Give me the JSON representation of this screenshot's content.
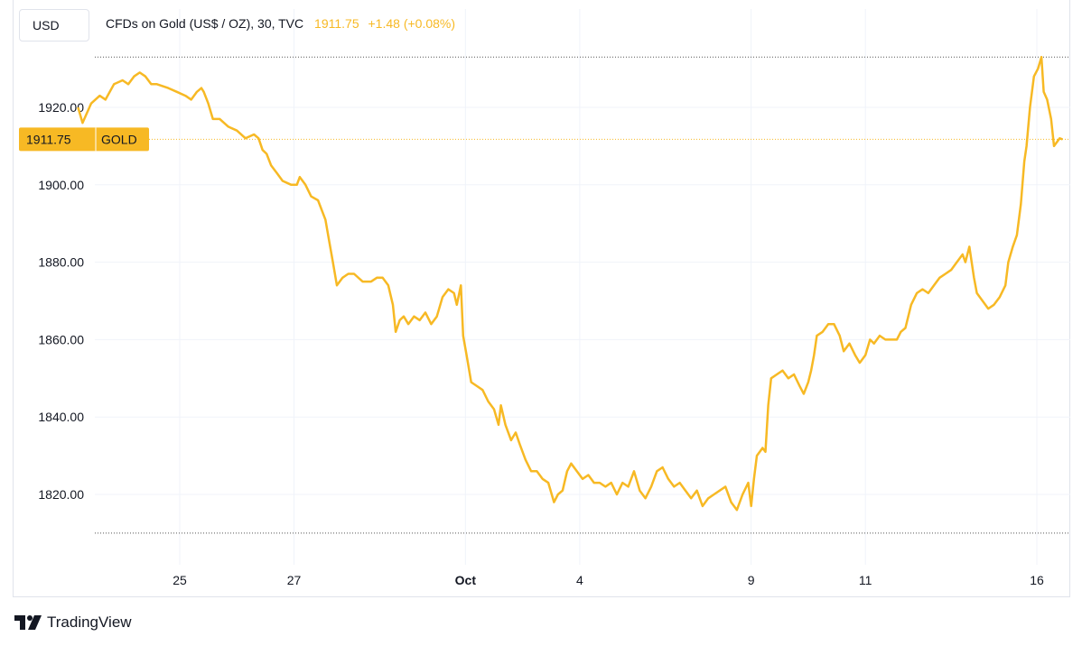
{
  "header": {
    "currency_button": "USD",
    "symbol_name": "CFDs on Gold (US$ / OZ), 30, TVC",
    "last_price": "1911.75",
    "change": "+1.48 (+0.08%)"
  },
  "price_badge": {
    "price": "1911.75",
    "label": "GOLD"
  },
  "footer": {
    "brand": "TradingView"
  },
  "colors": {
    "line": "#f7b924",
    "badge": "#f7b924",
    "grid": "#f0f3fa",
    "text": "#131722"
  },
  "chart_data": {
    "type": "line",
    "title": "CFDs on Gold (US$ / OZ), 30, TVC",
    "ylim": [
      1803,
      1943
    ],
    "y_ticks": [
      1820,
      1840,
      1860,
      1880,
      1900,
      1920
    ],
    "y_tick_labels": [
      "1820.00",
      "1840.00",
      "1860.00",
      "1880.00",
      "1900.00",
      "1920.00"
    ],
    "x_range": [
      23.2,
      40.3
    ],
    "x_ticks": [
      25,
      27,
      30,
      32,
      35,
      37,
      40
    ],
    "x_tick_labels": [
      "25",
      "27",
      "Oct",
      "4",
      "9",
      "11",
      "16"
    ],
    "high": 1933,
    "low": 1810,
    "last": 1911.75,
    "grid": true,
    "legend": "top-left",
    "series": [
      {
        "color": "#f7b924",
        "points": [
          [
            23.22,
            1920
          ],
          [
            23.3,
            1916
          ],
          [
            23.45,
            1921
          ],
          [
            23.6,
            1923
          ],
          [
            23.7,
            1922
          ],
          [
            23.85,
            1926
          ],
          [
            24.0,
            1927
          ],
          [
            24.1,
            1926
          ],
          [
            24.2,
            1928
          ],
          [
            24.3,
            1929
          ],
          [
            24.4,
            1928
          ],
          [
            24.5,
            1926
          ],
          [
            24.6,
            1926
          ],
          [
            24.8,
            1925
          ],
          [
            24.95,
            1924
          ],
          [
            25.1,
            1923
          ],
          [
            25.2,
            1922
          ],
          [
            25.3,
            1924
          ],
          [
            25.38,
            1925
          ],
          [
            25.42,
            1924
          ],
          [
            25.5,
            1921
          ],
          [
            25.58,
            1917
          ],
          [
            25.7,
            1917
          ],
          [
            25.85,
            1915
          ],
          [
            26.0,
            1914
          ],
          [
            26.15,
            1912
          ],
          [
            26.3,
            1913
          ],
          [
            26.38,
            1912
          ],
          [
            26.45,
            1909
          ],
          [
            26.52,
            1908
          ],
          [
            26.6,
            1905
          ],
          [
            26.7,
            1903
          ],
          [
            26.8,
            1901
          ],
          [
            26.95,
            1900
          ],
          [
            27.05,
            1900
          ],
          [
            27.1,
            1902
          ],
          [
            27.2,
            1900
          ],
          [
            27.3,
            1897
          ],
          [
            27.42,
            1896
          ],
          [
            27.55,
            1891
          ],
          [
            27.62,
            1885
          ],
          [
            27.68,
            1880
          ],
          [
            27.75,
            1874
          ],
          [
            27.85,
            1876
          ],
          [
            27.95,
            1877
          ],
          [
            28.05,
            1877
          ],
          [
            28.2,
            1875
          ],
          [
            28.35,
            1875
          ],
          [
            28.45,
            1876
          ],
          [
            28.55,
            1876
          ],
          [
            28.65,
            1874
          ],
          [
            28.73,
            1869
          ],
          [
            28.78,
            1862
          ],
          [
            28.85,
            1865
          ],
          [
            28.92,
            1866
          ],
          [
            29.0,
            1864
          ],
          [
            29.1,
            1866
          ],
          [
            29.2,
            1865
          ],
          [
            29.3,
            1867
          ],
          [
            29.4,
            1864
          ],
          [
            29.5,
            1866
          ],
          [
            29.6,
            1871
          ],
          [
            29.7,
            1873
          ],
          [
            29.8,
            1872
          ],
          [
            29.85,
            1869
          ],
          [
            29.92,
            1874
          ],
          [
            29.96,
            1861
          ],
          [
            30.02,
            1856
          ],
          [
            30.1,
            1849
          ],
          [
            30.2,
            1848
          ],
          [
            30.3,
            1847
          ],
          [
            30.4,
            1844
          ],
          [
            30.5,
            1842
          ],
          [
            30.58,
            1838
          ],
          [
            30.62,
            1843
          ],
          [
            30.7,
            1838
          ],
          [
            30.8,
            1834
          ],
          [
            30.88,
            1836
          ],
          [
            30.95,
            1833
          ],
          [
            31.05,
            1829
          ],
          [
            31.15,
            1826
          ],
          [
            31.25,
            1826
          ],
          [
            31.35,
            1824
          ],
          [
            31.45,
            1823
          ],
          [
            31.55,
            1818
          ],
          [
            31.62,
            1820
          ],
          [
            31.7,
            1821
          ],
          [
            31.78,
            1826
          ],
          [
            31.85,
            1828
          ],
          [
            31.95,
            1826
          ],
          [
            32.05,
            1824
          ],
          [
            32.15,
            1825
          ],
          [
            32.25,
            1823
          ],
          [
            32.35,
            1823
          ],
          [
            32.45,
            1822
          ],
          [
            32.55,
            1823
          ],
          [
            32.65,
            1820
          ],
          [
            32.75,
            1823
          ],
          [
            32.85,
            1822
          ],
          [
            32.95,
            1826
          ],
          [
            33.05,
            1821
          ],
          [
            33.15,
            1819
          ],
          [
            33.25,
            1822
          ],
          [
            33.35,
            1826
          ],
          [
            33.45,
            1827
          ],
          [
            33.55,
            1824
          ],
          [
            33.65,
            1822
          ],
          [
            33.75,
            1823
          ],
          [
            33.85,
            1821
          ],
          [
            33.95,
            1819
          ],
          [
            34.05,
            1821
          ],
          [
            34.15,
            1817
          ],
          [
            34.25,
            1819
          ],
          [
            34.35,
            1820
          ],
          [
            34.45,
            1821
          ],
          [
            34.55,
            1822
          ],
          [
            34.65,
            1818
          ],
          [
            34.75,
            1816
          ],
          [
            34.85,
            1820
          ],
          [
            34.95,
            1823
          ],
          [
            35.0,
            1817
          ],
          [
            35.05,
            1824
          ],
          [
            35.1,
            1830
          ],
          [
            35.2,
            1832
          ],
          [
            35.25,
            1831
          ],
          [
            35.3,
            1843
          ],
          [
            35.35,
            1850
          ],
          [
            35.45,
            1851
          ],
          [
            35.55,
            1852
          ],
          [
            35.65,
            1850
          ],
          [
            35.75,
            1851
          ],
          [
            35.85,
            1848
          ],
          [
            35.92,
            1846
          ],
          [
            36.0,
            1849
          ],
          [
            36.05,
            1852
          ],
          [
            36.1,
            1856
          ],
          [
            36.15,
            1861
          ],
          [
            36.25,
            1862
          ],
          [
            36.35,
            1864
          ],
          [
            36.45,
            1864
          ],
          [
            36.55,
            1861
          ],
          [
            36.62,
            1857
          ],
          [
            36.72,
            1859
          ],
          [
            36.82,
            1856
          ],
          [
            36.9,
            1854
          ],
          [
            37.0,
            1856
          ],
          [
            37.08,
            1860
          ],
          [
            37.15,
            1859
          ],
          [
            37.25,
            1861
          ],
          [
            37.35,
            1860
          ],
          [
            37.45,
            1860
          ],
          [
            37.55,
            1860
          ],
          [
            37.62,
            1862
          ],
          [
            37.7,
            1863
          ],
          [
            37.8,
            1869
          ],
          [
            37.9,
            1872
          ],
          [
            38.0,
            1873
          ],
          [
            38.1,
            1872
          ],
          [
            38.2,
            1874
          ],
          [
            38.3,
            1876
          ],
          [
            38.4,
            1877
          ],
          [
            38.5,
            1878
          ],
          [
            38.6,
            1880
          ],
          [
            38.7,
            1882
          ],
          [
            38.75,
            1880
          ],
          [
            38.82,
            1884
          ],
          [
            38.9,
            1876
          ],
          [
            38.95,
            1872
          ],
          [
            39.05,
            1870
          ],
          [
            39.15,
            1868
          ],
          [
            39.25,
            1869
          ],
          [
            39.35,
            1871
          ],
          [
            39.45,
            1874
          ],
          [
            39.5,
            1880
          ],
          [
            39.58,
            1884
          ],
          [
            39.65,
            1887
          ],
          [
            39.72,
            1895
          ],
          [
            39.78,
            1906
          ],
          [
            39.82,
            1910
          ],
          [
            39.88,
            1920
          ],
          [
            39.95,
            1928
          ],
          [
            40.02,
            1930
          ],
          [
            40.08,
            1933
          ],
          [
            40.12,
            1924
          ],
          [
            40.18,
            1922
          ],
          [
            40.25,
            1917
          ],
          [
            40.3,
            1910
          ],
          [
            40.4,
            1912
          ],
          [
            40.45,
            1911.75
          ]
        ]
      }
    ]
  }
}
